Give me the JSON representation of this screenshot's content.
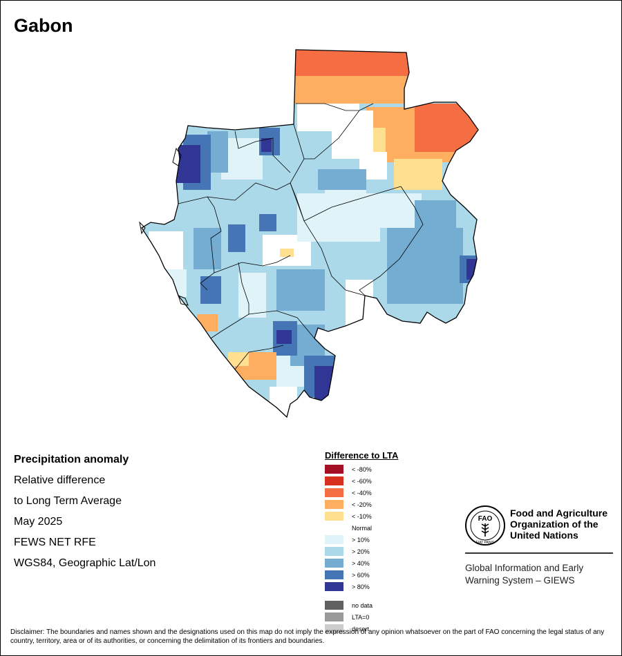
{
  "title": "Gabon",
  "info_lines": [
    "Precipitation anomaly",
    "Relative difference",
    "to Long Term Average",
    "May 2025",
    "FEWS NET RFE",
    "WGS84, Geographic Lat/Lon"
  ],
  "legend": {
    "title": "Difference to LTA",
    "classes": [
      {
        "label": "< -80%",
        "color": "#a50f26"
      },
      {
        "label": "< -60%",
        "color": "#d7301f"
      },
      {
        "label": "< -40%",
        "color": "#f46d43"
      },
      {
        "label": "< -20%",
        "color": "#fdae61"
      },
      {
        "label": "< -10%",
        "color": "#fee090"
      },
      {
        "label": "Normal",
        "color": "#ffffff"
      },
      {
        "label": "> 10%",
        "color": "#e0f3f8"
      },
      {
        "label": "> 20%",
        "color": "#abd9e9"
      },
      {
        "label": "> 40%",
        "color": "#74add1"
      },
      {
        "label": "> 60%",
        "color": "#4575b4"
      },
      {
        "label": "> 80%",
        "color": "#313695"
      }
    ],
    "extra": [
      {
        "label": "no data",
        "color": "#606060"
      },
      {
        "label": "LTA=0",
        "color": "#999999"
      },
      {
        "label": "desert",
        "color": "#cccccc"
      }
    ]
  },
  "fao": {
    "logo_text": "FAO",
    "motto": "FIAT PANIS",
    "name_lines": [
      "Food and Agriculture",
      "Organization of the",
      "United Nations"
    ],
    "giews_lines": [
      "Global Information and Early",
      "Warning System – GIEWS"
    ]
  },
  "disclaimer": "Disclaimer: The boundaries and names shown and the designations used on this map do not imply the expression of any opinion whatsoever on the part of FAO concerning the legal status of any country, territory, area or of its authorities, or concerning the delimitation of its frontiers and boundaries."
}
